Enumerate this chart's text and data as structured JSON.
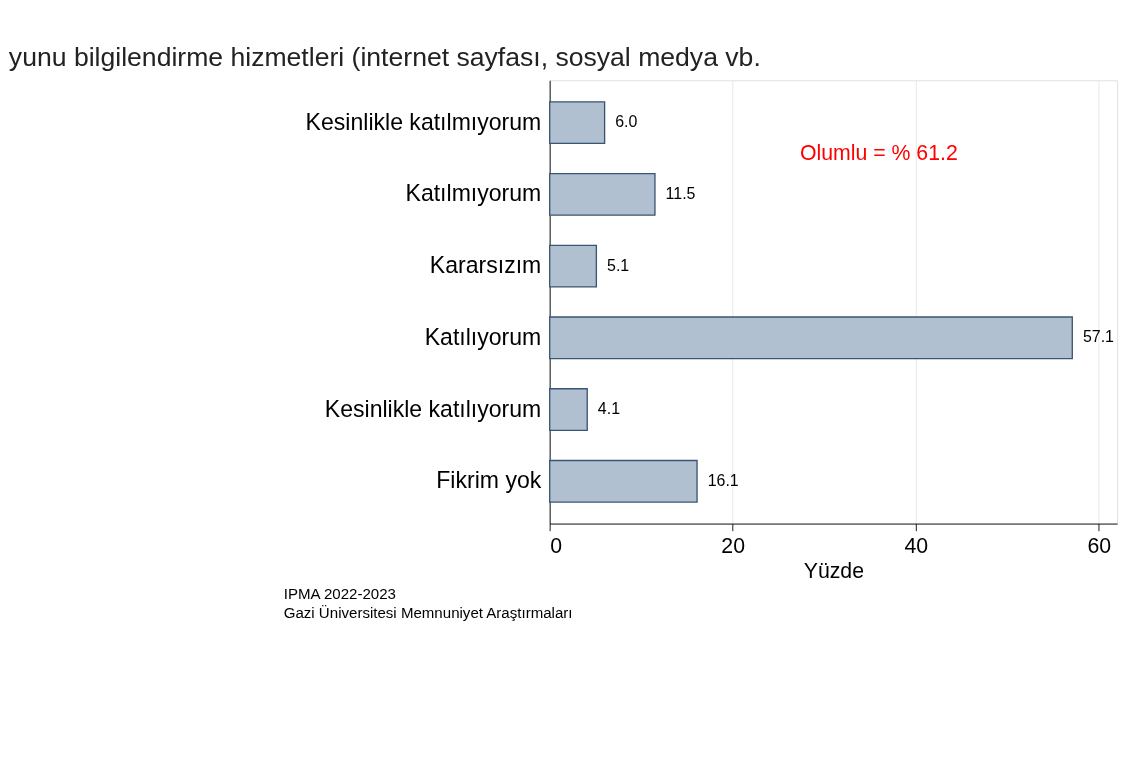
{
  "chart_data": {
    "type": "bar",
    "orientation": "horizontal",
    "title": "yunu bilgilendirme hizmetleri (internet sayfası, sosyal medya vb.",
    "categories": [
      "Kesinlikle katılmıyorum",
      "Katılmıyorum",
      "Kararsızım",
      "Katılıyorum",
      "Kesinlikle katılıyorum",
      "Fikrim yok"
    ],
    "values": [
      6.0,
      11.5,
      5.1,
      57.1,
      4.1,
      16.1
    ],
    "color": "#b0c0d0",
    "xlim": [
      0,
      62
    ],
    "xticks": [
      0,
      20,
      40,
      60
    ],
    "xlabel": "Yüzde",
    "value_labels": [
      "6.0",
      "11.5",
      "5.1",
      "57.1",
      "4.1",
      "16.1"
    ],
    "grid": "x",
    "annotations": [
      "Olumlu = % 61.2",
      "IPMA 2022-2023",
      "Gazi Üniversitesi Memnuniyet Araştırmaları"
    ]
  }
}
